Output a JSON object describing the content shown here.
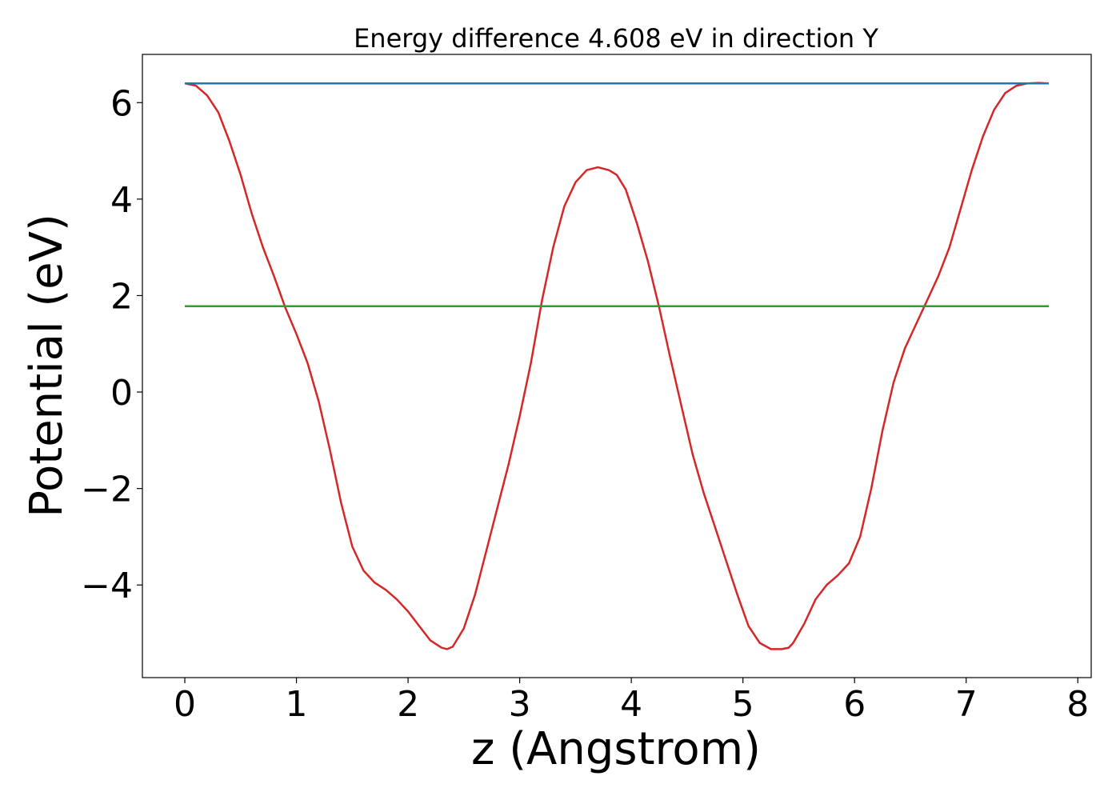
{
  "chart_data": {
    "type": "line",
    "title": "Energy difference 4.608 eV in direction Y",
    "xlabel": "z (Angstrom)",
    "ylabel": "Potential (eV)",
    "xlim": [
      -0.38,
      8.12
    ],
    "ylim": [
      -5.92,
      7.0
    ],
    "xticks": [
      0,
      1,
      2,
      3,
      4,
      5,
      6,
      7,
      8
    ],
    "xtick_labels": [
      "0",
      "1",
      "2",
      "3",
      "4",
      "5",
      "6",
      "7",
      "8"
    ],
    "yticks": [
      -4,
      -2,
      0,
      2,
      4,
      6
    ],
    "ytick_labels": [
      "−4",
      "−2",
      "0",
      "2",
      "4",
      "6"
    ],
    "grid": false,
    "legend": false,
    "series": [
      {
        "color": "#d62728",
        "x": [
          0.0,
          0.1,
          0.2,
          0.3,
          0.4,
          0.5,
          0.6,
          0.7,
          0.8,
          0.9,
          1.0,
          1.1,
          1.2,
          1.3,
          1.4,
          1.5,
          1.6,
          1.7,
          1.8,
          1.9,
          2.0,
          2.1,
          2.2,
          2.3,
          2.35,
          2.4,
          2.5,
          2.6,
          2.7,
          2.8,
          2.9,
          3.0,
          3.1,
          3.2,
          3.3,
          3.4,
          3.5,
          3.6,
          3.7,
          3.8,
          3.87,
          3.95,
          4.05,
          4.15,
          4.25,
          4.35,
          4.45,
          4.55,
          4.65,
          4.75,
          4.85,
          4.95,
          5.05,
          5.15,
          5.25,
          5.35,
          5.41,
          5.45,
          5.55,
          5.65,
          5.75,
          5.85,
          5.95,
          6.05,
          6.15,
          6.25,
          6.35,
          6.45,
          6.55,
          6.65,
          6.75,
          6.85,
          6.95,
          7.05,
          7.15,
          7.25,
          7.35,
          7.45,
          7.55,
          7.65,
          7.74
        ],
        "y": [
          6.4,
          6.35,
          6.15,
          5.8,
          5.2,
          4.5,
          3.7,
          3.0,
          2.4,
          1.75,
          1.2,
          0.6,
          -0.2,
          -1.2,
          -2.3,
          -3.2,
          -3.7,
          -3.95,
          -4.1,
          -4.3,
          -4.55,
          -4.85,
          -5.15,
          -5.3,
          -5.33,
          -5.28,
          -4.9,
          -4.2,
          -3.3,
          -2.4,
          -1.5,
          -0.5,
          0.6,
          1.9,
          3.0,
          3.85,
          4.35,
          4.6,
          4.66,
          4.6,
          4.5,
          4.2,
          3.5,
          2.7,
          1.75,
          0.7,
          -0.3,
          -1.3,
          -2.1,
          -2.8,
          -3.5,
          -4.2,
          -4.85,
          -5.2,
          -5.33,
          -5.33,
          -5.3,
          -5.2,
          -4.8,
          -4.3,
          -4.0,
          -3.8,
          -3.55,
          -3.0,
          -2.0,
          -0.8,
          0.2,
          0.9,
          1.4,
          1.9,
          2.4,
          3.0,
          3.8,
          4.6,
          5.3,
          5.85,
          6.2,
          6.35,
          6.4,
          6.41,
          6.4
        ]
      },
      {
        "color": "#1f77b4",
        "x": [
          0.0,
          7.74
        ],
        "y": [
          6.4,
          6.4
        ]
      },
      {
        "color": "#2ca02c",
        "x": [
          0.0,
          7.74
        ],
        "y": [
          1.78,
          1.78
        ]
      }
    ]
  }
}
